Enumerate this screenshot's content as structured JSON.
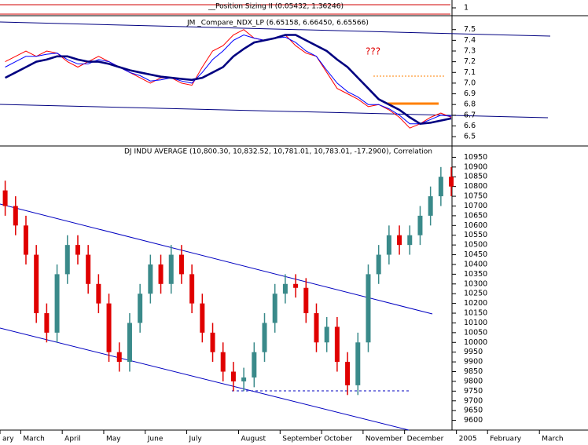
{
  "chart_data": [
    {
      "type": "strip",
      "title": "__Position Sizing II (0.05432, 1.36246)",
      "yticks": [
        1
      ]
    },
    {
      "type": "line",
      "title": "JM _Compare_NDX_LP (6.65158, 6.66450, 6.65566)",
      "annotation": "???",
      "ylim": [
        6.42,
        7.63
      ],
      "yticks": [
        7.5,
        7.4,
        7.3,
        7.2,
        7.1,
        {
          "value": 7,
          "label": "7.0"
        },
        6.9,
        6.8,
        6.7,
        6.6,
        6.5
      ],
      "series": [
        {
          "color": "#ff0000",
          "width": 1,
          "values": [
            7.2,
            7.25,
            7.3,
            7.25,
            7.3,
            7.28,
            7.2,
            7.15,
            7.2,
            7.25,
            7.2,
            7.15,
            7.1,
            7.05,
            7.0,
            7.05,
            7.05,
            7.0,
            6.98,
            7.15,
            7.3,
            7.35,
            7.45,
            7.5,
            7.42,
            7.4,
            7.42,
            7.45,
            7.35,
            7.28,
            7.25,
            7.1,
            6.95,
            6.9,
            6.85,
            6.78,
            6.8,
            6.75,
            6.68,
            6.58,
            6.62,
            6.68,
            6.72,
            6.68,
            null,
            null,
            null,
            null,
            null,
            null,
            null,
            null,
            null,
            null,
            null,
            null
          ]
        },
        {
          "color": "#0000ff",
          "width": 1,
          "values": [
            7.15,
            7.2,
            7.25,
            7.25,
            7.27,
            7.28,
            7.22,
            7.18,
            7.18,
            7.22,
            7.2,
            7.15,
            7.1,
            7.07,
            7.02,
            7.03,
            7.05,
            7.02,
            7.0,
            7.1,
            7.22,
            7.3,
            7.4,
            7.45,
            7.42,
            7.4,
            7.42,
            7.43,
            7.38,
            7.3,
            7.25,
            7.12,
            7.0,
            6.92,
            6.87,
            6.8,
            6.8,
            6.76,
            6.7,
            6.62,
            6.62,
            6.66,
            6.7,
            6.69,
            null,
            null,
            null,
            null,
            null,
            null,
            null,
            null,
            null,
            null,
            null,
            null
          ]
        },
        {
          "color": "#000080",
          "width": 2.6,
          "values": [
            7.05,
            7.1,
            7.15,
            7.2,
            7.22,
            7.25,
            7.25,
            7.22,
            7.2,
            7.2,
            7.18,
            7.15,
            7.12,
            7.1,
            7.08,
            7.06,
            7.05,
            7.04,
            7.03,
            7.05,
            7.1,
            7.15,
            7.25,
            7.32,
            7.38,
            7.4,
            7.42,
            7.45,
            7.45,
            7.4,
            7.35,
            7.3,
            7.22,
            7.15,
            7.05,
            6.95,
            6.85,
            6.8,
            6.75,
            6.68,
            6.62,
            6.63,
            6.65,
            6.67,
            null,
            null,
            null,
            null,
            null,
            null,
            null,
            null,
            null,
            null,
            null,
            null
          ]
        }
      ]
    },
    {
      "type": "ohlc",
      "title": "DJ INDU AVERAGE (10,800.30, 10,832.52, 10,781.01, 10,783.01, -17.2900), Correlation",
      "ylim": [
        9550,
        11000
      ],
      "yticks": [
        10950,
        10900,
        10850,
        10800,
        10750,
        10700,
        10650,
        10600,
        10550,
        10500,
        10450,
        10400,
        10350,
        10300,
        10250,
        10200,
        10150,
        10100,
        10050,
        10000,
        9950,
        9900,
        9850,
        9800,
        9750,
        9700,
        9650,
        9600
      ],
      "up_color": "#3a8a8a",
      "down_color": "#e00000",
      "categories": [
        "ary",
        null,
        "March",
        null,
        null,
        null,
        "April",
        null,
        null,
        null,
        "May",
        null,
        null,
        null,
        "June",
        null,
        null,
        null,
        "July",
        null,
        null,
        null,
        null,
        "August",
        null,
        null,
        null,
        "September",
        null,
        null,
        null,
        "October",
        null,
        null,
        null,
        "November",
        null,
        null,
        null,
        "December",
        null,
        null,
        null,
        null,
        "2005",
        null,
        null,
        "February",
        null,
        null,
        null,
        null,
        "March",
        null,
        null,
        null
      ],
      "open": [
        10780,
        10700,
        10600,
        10450,
        10150,
        10050,
        10350,
        10500,
        10450,
        10300,
        10200,
        9950,
        9900,
        10100,
        10250,
        10400,
        10300,
        10450,
        10350,
        10200,
        10050,
        9950,
        9850,
        9800,
        9820,
        9950,
        10100,
        10250,
        10300,
        10280,
        10150,
        10000,
        10080,
        9900,
        9780,
        10000,
        10350,
        10450,
        10550,
        10500,
        10550,
        10650,
        10750,
        10850,
        null,
        null,
        null,
        null,
        null,
        null,
        null,
        null,
        null,
        null,
        null,
        null
      ],
      "high": [
        10830,
        10750,
        10650,
        10500,
        10200,
        10400,
        10550,
        10550,
        10500,
        10350,
        10250,
        10000,
        10150,
        10300,
        10450,
        10450,
        10500,
        10500,
        10400,
        10250,
        10100,
        10000,
        9900,
        9870,
        10000,
        10150,
        10300,
        10350,
        10350,
        10330,
        10200,
        10130,
        10130,
        9950,
        10050,
        10400,
        10500,
        10600,
        10600,
        10600,
        10700,
        10800,
        10900,
        10900,
        null,
        null,
        null,
        null,
        null,
        null,
        null,
        null,
        null,
        null,
        null,
        null
      ],
      "low": [
        10650,
        10550,
        10400,
        10100,
        10000,
        10000,
        10300,
        10400,
        10250,
        10150,
        9900,
        9850,
        9850,
        10050,
        10200,
        10250,
        10250,
        10300,
        10150,
        10000,
        9900,
        9800,
        9750,
        9750,
        9770,
        9900,
        10050,
        10200,
        10230,
        10100,
        9950,
        9950,
        9850,
        9730,
        9730,
        9950,
        10300,
        10400,
        10450,
        10450,
        10500,
        10600,
        10700,
        10750,
        null,
        null,
        null,
        null,
        null,
        null,
        null,
        null,
        null,
        null,
        null,
        null
      ],
      "close": [
        10700,
        10600,
        10450,
        10150,
        10050,
        10350,
        10500,
        10450,
        10300,
        10200,
        9950,
        9900,
        10100,
        10250,
        10400,
        10300,
        10450,
        10350,
        10200,
        10050,
        9950,
        9850,
        9800,
        9820,
        9950,
        10100,
        10250,
        10300,
        10280,
        10150,
        10000,
        10080,
        9900,
        9780,
        10000,
        10350,
        10450,
        10550,
        10500,
        10550,
        10650,
        10750,
        10850,
        10800,
        null,
        null,
        null,
        null,
        null,
        null,
        null,
        null,
        null,
        null,
        null,
        null
      ]
    }
  ]
}
